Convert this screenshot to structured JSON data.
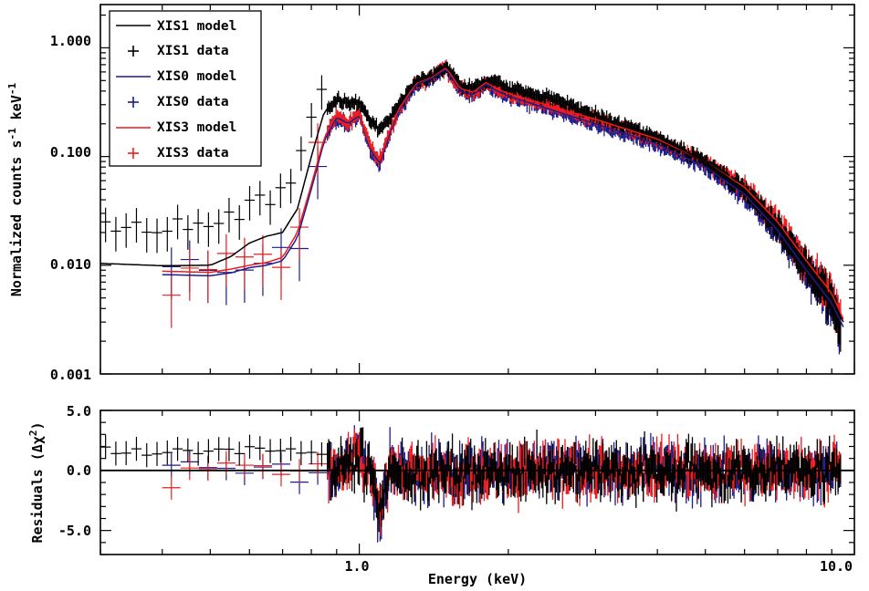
{
  "chart_data": [
    {
      "type": "line",
      "panel": "spectrum",
      "xlabel": "Energy (keV)",
      "ylabel_main": "Normalized counts s",
      "ylabel_exp1": "-1",
      "ylabel_mid": " keV",
      "ylabel_exp2": "-1",
      "x_scale": "log",
      "y_scale": "log",
      "xlim": [
        0.3,
        10.0
      ],
      "ylim": [
        0.001,
        2.5
      ],
      "x_tick_labels": [
        "1.0",
        "10.0"
      ],
      "y_tick_labels": [
        "0.001",
        "0.010",
        "0.100",
        "1.000"
      ],
      "legend_position": "top-left",
      "legend": [
        {
          "label": "XIS1 model",
          "color": "#000000",
          "kind": "line"
        },
        {
          "label": "XIS1 data",
          "color": "#000000",
          "kind": "cross"
        },
        {
          "label": "XIS0 model",
          "color": "#1c1c8c",
          "kind": "line"
        },
        {
          "label": "XIS0 data",
          "color": "#1c1c8c",
          "kind": "cross"
        },
        {
          "label": "XIS3 model",
          "color": "#ee1c1c",
          "kind": "line"
        },
        {
          "label": "XIS3 data",
          "color": "#ee1c1c",
          "kind": "cross"
        }
      ],
      "series": [
        {
          "name": "XIS1 model",
          "color": "#000000",
          "x": [
            0.3,
            0.4,
            0.5,
            0.55,
            0.6,
            0.65,
            0.7,
            0.75,
            0.8,
            0.85,
            0.9,
            0.95,
            1.0,
            1.05,
            1.1,
            1.15,
            1.2,
            1.3,
            1.4,
            1.5,
            1.6,
            1.7,
            1.8,
            1.9,
            2.0,
            2.5,
            3.0,
            4.0,
            5.0,
            6.0,
            7.0,
            8.0,
            9.0,
            9.5
          ],
          "y": [
            0.0104,
            0.0099,
            0.01,
            0.012,
            0.016,
            0.0185,
            0.02,
            0.033,
            0.1,
            0.26,
            0.33,
            0.31,
            0.32,
            0.22,
            0.18,
            0.22,
            0.3,
            0.48,
            0.55,
            0.68,
            0.45,
            0.42,
            0.5,
            0.48,
            0.43,
            0.33,
            0.24,
            0.15,
            0.09,
            0.05,
            0.023,
            0.01,
            0.005,
            0.003
          ]
        },
        {
          "name": "XIS0 model",
          "color": "#1c1c8c",
          "x": [
            0.4,
            0.5,
            0.55,
            0.6,
            0.65,
            0.7,
            0.75,
            0.8,
            0.85,
            0.9,
            0.95,
            1.0,
            1.05,
            1.1,
            1.15,
            1.2,
            1.3,
            1.4,
            1.5,
            1.6,
            1.7,
            1.8,
            1.9,
            2.0,
            2.5,
            3.0,
            4.0,
            5.0,
            6.0,
            7.0,
            8.0,
            9.0,
            9.5
          ],
          "y": [
            0.0082,
            0.008,
            0.0085,
            0.0095,
            0.01,
            0.011,
            0.018,
            0.05,
            0.14,
            0.23,
            0.2,
            0.24,
            0.12,
            0.085,
            0.16,
            0.26,
            0.45,
            0.52,
            0.64,
            0.4,
            0.37,
            0.46,
            0.4,
            0.36,
            0.26,
            0.2,
            0.13,
            0.08,
            0.045,
            0.021,
            0.009,
            0.0045,
            0.0027
          ]
        },
        {
          "name": "XIS3 model",
          "color": "#ee1c1c",
          "x": [
            0.4,
            0.5,
            0.55,
            0.6,
            0.65,
            0.7,
            0.75,
            0.8,
            0.85,
            0.9,
            0.95,
            1.0,
            1.05,
            1.1,
            1.15,
            1.2,
            1.3,
            1.4,
            1.5,
            1.6,
            1.7,
            1.8,
            1.9,
            2.0,
            2.5,
            3.0,
            4.0,
            5.0,
            6.0,
            7.0,
            8.0,
            9.0,
            9.5
          ],
          "y": [
            0.0088,
            0.0086,
            0.0092,
            0.01,
            0.0106,
            0.0118,
            0.02,
            0.055,
            0.15,
            0.24,
            0.21,
            0.25,
            0.125,
            0.09,
            0.17,
            0.27,
            0.47,
            0.54,
            0.66,
            0.42,
            0.39,
            0.48,
            0.42,
            0.38,
            0.28,
            0.22,
            0.145,
            0.09,
            0.052,
            0.025,
            0.011,
            0.0055,
            0.0032
          ]
        }
      ]
    },
    {
      "type": "line",
      "panel": "residuals",
      "ylabel_main": "Residuals (Δχ",
      "ylabel_exp": "2",
      "ylabel_end": ")",
      "x_scale": "log",
      "xlim": [
        0.3,
        10.0
      ],
      "ylim": [
        -7.0,
        5.0
      ],
      "y_tick_labels": [
        "5.0",
        "0.0",
        "-5.0"
      ],
      "zero_line": 0.0
    }
  ]
}
